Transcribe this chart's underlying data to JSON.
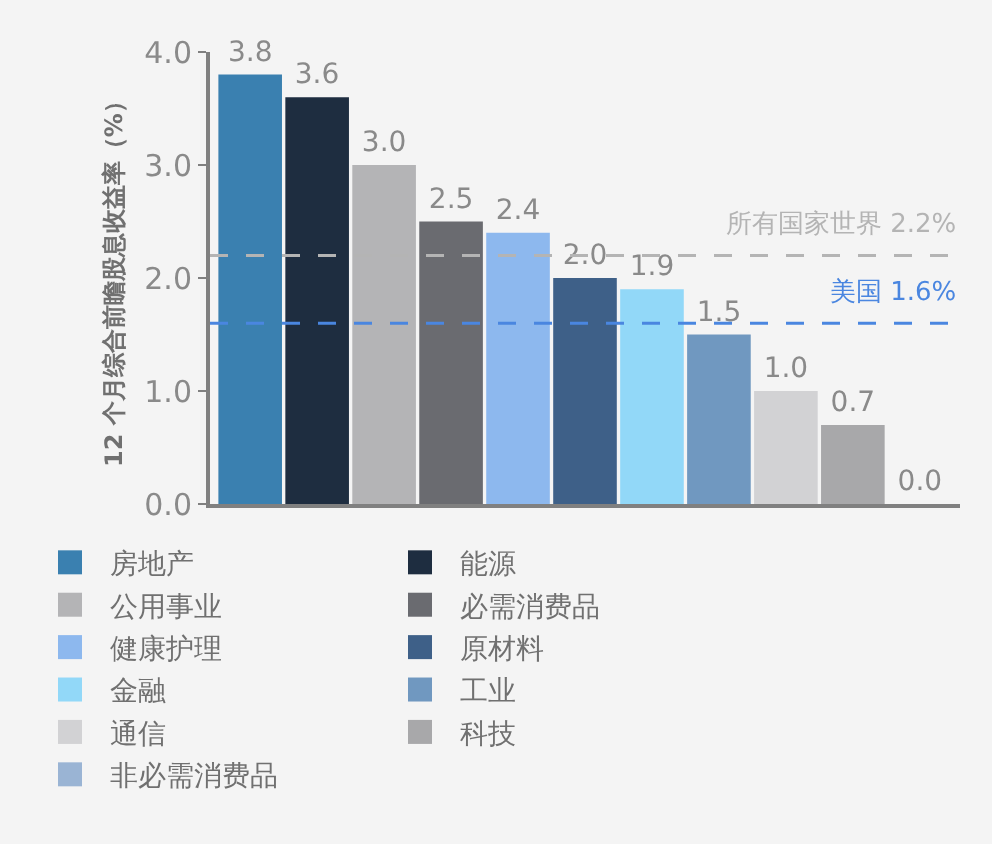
{
  "chart_data": {
    "type": "bar",
    "ylabel": "12 个月综合前瞻股息收益率（%）",
    "categories": [
      null,
      null,
      null,
      null,
      null,
      null,
      null,
      null,
      null,
      null,
      null
    ],
    "series": [
      {
        "name": "房地产",
        "color": "#3a80b0",
        "values": [
          3.8,
          null,
          null,
          null,
          null,
          null,
          null,
          null,
          null,
          null,
          null
        ],
        "value_labels": [
          "3.8",
          null,
          null,
          null,
          null,
          null,
          null,
          null,
          null,
          null,
          null
        ]
      },
      {
        "name": "能源",
        "color": "#1e2d40",
        "values": [
          null,
          3.6,
          null,
          null,
          null,
          null,
          null,
          null,
          null,
          null,
          null
        ],
        "value_labels": [
          null,
          "3.6",
          null,
          null,
          null,
          null,
          null,
          null,
          null,
          null,
          null
        ]
      },
      {
        "name": "公用事业",
        "color": "#b4b4b6",
        "values": [
          null,
          null,
          3.0,
          null,
          null,
          null,
          null,
          null,
          null,
          null,
          null
        ],
        "value_labels": [
          null,
          null,
          "3.0",
          null,
          null,
          null,
          null,
          null,
          null,
          null,
          null
        ]
      },
      {
        "name": "必需消费品",
        "color": "#6a6b70",
        "values": [
          null,
          null,
          null,
          2.5,
          null,
          null,
          null,
          null,
          null,
          null,
          null
        ],
        "value_labels": [
          null,
          null,
          null,
          "2.5",
          null,
          null,
          null,
          null,
          null,
          null,
          null
        ]
      },
      {
        "name": "健康护理",
        "color": "#8db8ee",
        "values": [
          null,
          null,
          null,
          null,
          2.4,
          null,
          null,
          null,
          null,
          null,
          null
        ],
        "value_labels": [
          null,
          null,
          null,
          null,
          "2.4",
          null,
          null,
          null,
          null,
          null,
          null
        ]
      },
      {
        "name": "原材料",
        "color": "#3e6088",
        "values": [
          null,
          null,
          null,
          null,
          null,
          2.0,
          null,
          null,
          null,
          null,
          null
        ],
        "value_labels": [
          null,
          null,
          null,
          null,
          null,
          "2.0",
          null,
          null,
          null,
          null,
          null
        ]
      },
      {
        "name": "金融",
        "color": "#92d8f8",
        "values": [
          null,
          null,
          null,
          null,
          null,
          null,
          1.9,
          null,
          null,
          null,
          null
        ],
        "value_labels": [
          null,
          null,
          null,
          null,
          null,
          null,
          "1.9",
          null,
          null,
          null,
          null
        ]
      },
      {
        "name": "工业",
        "color": "#7098c0",
        "values": [
          null,
          null,
          null,
          null,
          null,
          null,
          null,
          1.5,
          null,
          null,
          null
        ],
        "value_labels": [
          null,
          null,
          null,
          null,
          null,
          null,
          null,
          "1.5",
          null,
          null,
          null
        ]
      },
      {
        "name": "通信",
        "color": "#d2d2d4",
        "values": [
          null,
          null,
          null,
          null,
          null,
          null,
          null,
          null,
          1.0,
          null,
          null
        ],
        "value_labels": [
          null,
          null,
          null,
          null,
          null,
          null,
          null,
          null,
          "1.0",
          null,
          null
        ]
      },
      {
        "name": "科技",
        "color": "#a8a8aa",
        "values": [
          null,
          null,
          null,
          null,
          null,
          null,
          null,
          null,
          null,
          0.7,
          null
        ],
        "value_labels": [
          null,
          null,
          null,
          null,
          null,
          null,
          null,
          null,
          null,
          "0.7",
          null
        ]
      },
      {
        "name": "非必需消费品",
        "color": "#9ab4d4",
        "values": [
          null,
          null,
          null,
          null,
          null,
          null,
          null,
          null,
          null,
          null,
          0.0
        ],
        "value_labels": [
          null,
          null,
          null,
          null,
          null,
          null,
          null,
          null,
          null,
          null,
          "0.0"
        ]
      }
    ],
    "ylim": [
      0,
      4.0
    ],
    "yticks": [
      {
        "value": 0,
        "label": "0.0"
      },
      {
        "value": 1,
        "label": "1.0"
      },
      {
        "value": 2,
        "label": "2.0"
      },
      {
        "value": 3,
        "label": "3.0"
      },
      {
        "value": 4,
        "label": "4.0"
      }
    ],
    "ref_lines": [
      {
        "axis": "y",
        "value": 2.2,
        "label": "所有国家世界 2.2%",
        "color": "#b4b4b4",
        "line_style": "dashed"
      },
      {
        "axis": "y",
        "value": 1.6,
        "label": "美国 1.6%",
        "color": "#4a86e0",
        "line_style": "dashed"
      }
    ],
    "grid": false,
    "legend": "bottom"
  }
}
